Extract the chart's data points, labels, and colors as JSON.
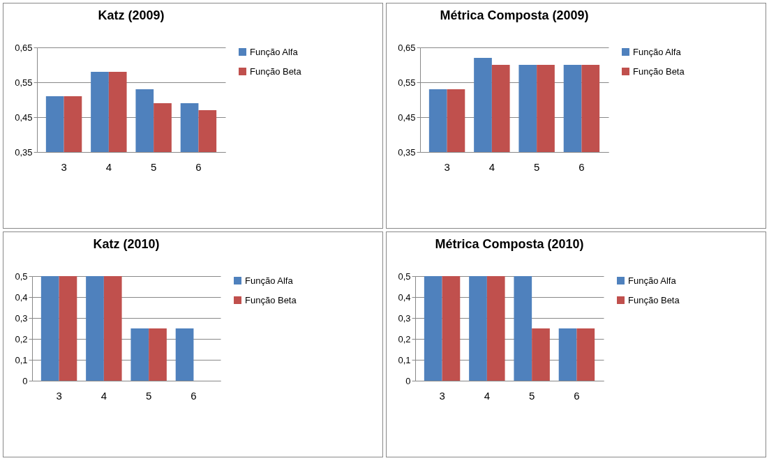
{
  "chart_data": [
    {
      "type": "bar",
      "title": "Katz (2009)",
      "categories": [
        "3",
        "4",
        "5",
        "6"
      ],
      "series": [
        {
          "name": "Função Alfa",
          "color": "#4f81bd",
          "values": [
            0.51,
            0.58,
            0.53,
            0.49
          ]
        },
        {
          "name": "Função Beta",
          "color": "#c0504d",
          "values": [
            0.51,
            0.58,
            0.49,
            0.47
          ]
        }
      ],
      "ylim": [
        0.35,
        0.65
      ],
      "yticks": [
        {
          "value": 0.35,
          "label": "0,35"
        },
        {
          "value": 0.45,
          "label": "0,45"
        },
        {
          "value": 0.55,
          "label": "0,55"
        },
        {
          "value": 0.65,
          "label": "0,65"
        }
      ],
      "grid": "y",
      "legend": "right"
    },
    {
      "type": "bar",
      "title": "Métrica Composta (2009)",
      "categories": [
        "3",
        "4",
        "5",
        "6"
      ],
      "series": [
        {
          "name": "Função Alfa",
          "color": "#4f81bd",
          "values": [
            0.53,
            0.62,
            0.6,
            0.6
          ]
        },
        {
          "name": "Função Beta",
          "color": "#c0504d",
          "values": [
            0.53,
            0.6,
            0.6,
            0.6
          ]
        }
      ],
      "ylim": [
        0.35,
        0.65
      ],
      "yticks": [
        {
          "value": 0.35,
          "label": "0,35"
        },
        {
          "value": 0.45,
          "label": "0,45"
        },
        {
          "value": 0.55,
          "label": "0,55"
        },
        {
          "value": 0.65,
          "label": "0,65"
        }
      ],
      "grid": "y",
      "legend": "right"
    },
    {
      "type": "bar",
      "title": "Katz (2010)",
      "categories": [
        "3",
        "4",
        "5",
        "6"
      ],
      "series": [
        {
          "name": "Função Alfa",
          "color": "#4f81bd",
          "values": [
            0.5,
            0.5,
            0.25,
            0.25
          ]
        },
        {
          "name": "Função Beta",
          "color": "#c0504d",
          "values": [
            0.5,
            0.5,
            0.25,
            0
          ]
        }
      ],
      "ylim": [
        0,
        0.5
      ],
      "yticks": [
        0,
        {
          "value": 0.1,
          "label": "0,1"
        },
        {
          "value": 0.2,
          "label": "0,2"
        },
        {
          "value": 0.3,
          "label": "0,3"
        },
        {
          "value": 0.4,
          "label": "0,4"
        },
        {
          "value": 0.5,
          "label": "0,5"
        }
      ],
      "grid": "y",
      "legend": "right"
    },
    {
      "type": "bar",
      "title": "Métrica Composta (2010)",
      "categories": [
        "3",
        "4",
        "5",
        "6"
      ],
      "series": [
        {
          "name": "Função Alfa",
          "color": "#4f81bd",
          "values": [
            0.5,
            0.5,
            0.5,
            0.25
          ]
        },
        {
          "name": "Função Beta",
          "color": "#c0504d",
          "values": [
            0.5,
            0.5,
            0.25,
            0.25
          ]
        }
      ],
      "ylim": [
        0,
        0.5
      ],
      "yticks": [
        0,
        {
          "value": 0.1,
          "label": "0,1"
        },
        {
          "value": 0.2,
          "label": "0,2"
        },
        {
          "value": 0.3,
          "label": "0,3"
        },
        {
          "value": 0.4,
          "label": "0,4"
        },
        {
          "value": 0.5,
          "label": "0,5"
        }
      ],
      "grid": "y",
      "legend": "right"
    }
  ]
}
